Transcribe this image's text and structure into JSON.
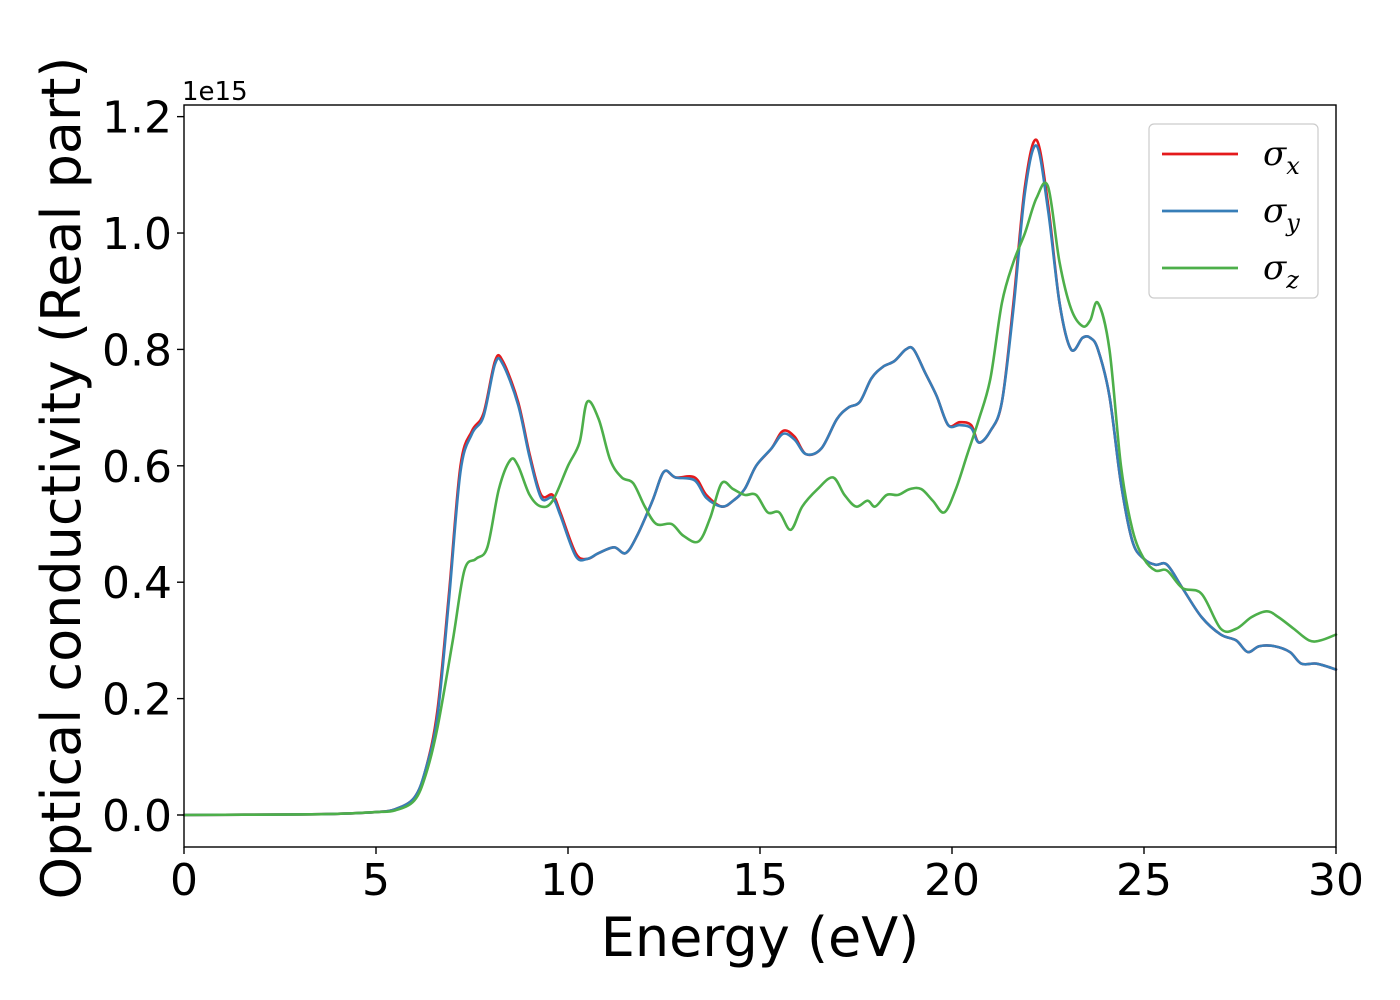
{
  "chart_data": {
    "type": "line",
    "xlabel": "Energy (eV)",
    "ylabel": "Optical conductivity (Real part)",
    "y_offset_label": "1e15",
    "xlim": [
      0,
      30
    ],
    "ylim": [
      -0.055,
      1.22
    ],
    "x_ticks": [
      0,
      5,
      10,
      15,
      20,
      25,
      30
    ],
    "x_tick_labels": [
      "0",
      "5",
      "10",
      "15",
      "20",
      "25",
      "30"
    ],
    "y_ticks": [
      0.0,
      0.2,
      0.4,
      0.6,
      0.8,
      1.0,
      1.2
    ],
    "y_tick_labels": [
      "0.0",
      "0.2",
      "0.4",
      "0.6",
      "0.8",
      "1.0",
      "1.2"
    ],
    "grid": false,
    "legend_position": "top-right",
    "series": [
      {
        "name": "σx",
        "legend_base": "σ",
        "legend_sub": "x",
        "color": "#e41a1c",
        "x": [
          0,
          3,
          4,
          5,
          5.5,
          6,
          6.3,
          6.6,
          6.9,
          7.2,
          7.5,
          7.8,
          8.1,
          8.3,
          8.7,
          9.0,
          9.3,
          9.6,
          9.8,
          10.2,
          10.5,
          10.8,
          11.2,
          11.5,
          11.8,
          12.2,
          12.5,
          12.8,
          13.3,
          13.6,
          14.0,
          14.3,
          14.6,
          14.9,
          15.3,
          15.6,
          15.9,
          16.2,
          16.6,
          17.0,
          17.3,
          17.6,
          17.9,
          18.2,
          18.5,
          18.8,
          19.0,
          19.3,
          19.6,
          19.9,
          20.2,
          20.5,
          20.7,
          21.0,
          21.3,
          21.6,
          21.9,
          22.2,
          22.5,
          22.8,
          23.1,
          23.4,
          23.6,
          23.8,
          24.1,
          24.4,
          24.7,
          25.0,
          25.3,
          25.6,
          26.0,
          26.5,
          27.0,
          27.4,
          27.7,
          28.0,
          28.4,
          28.8,
          29.1,
          29.5,
          30.0
        ],
        "values": [
          0.0,
          0.001,
          0.002,
          0.005,
          0.01,
          0.03,
          0.08,
          0.18,
          0.38,
          0.6,
          0.66,
          0.69,
          0.78,
          0.78,
          0.71,
          0.62,
          0.55,
          0.55,
          0.52,
          0.45,
          0.44,
          0.45,
          0.46,
          0.45,
          0.48,
          0.54,
          0.59,
          0.58,
          0.58,
          0.55,
          0.53,
          0.54,
          0.56,
          0.6,
          0.63,
          0.66,
          0.65,
          0.62,
          0.63,
          0.68,
          0.7,
          0.71,
          0.75,
          0.77,
          0.78,
          0.8,
          0.8,
          0.76,
          0.72,
          0.67,
          0.675,
          0.67,
          0.64,
          0.66,
          0.71,
          0.88,
          1.08,
          1.16,
          1.05,
          0.88,
          0.8,
          0.82,
          0.82,
          0.8,
          0.72,
          0.57,
          0.47,
          0.44,
          0.43,
          0.43,
          0.39,
          0.34,
          0.31,
          0.3,
          0.28,
          0.29,
          0.29,
          0.28,
          0.26,
          0.26,
          0.25
        ]
      },
      {
        "name": "σy",
        "legend_base": "σ",
        "legend_sub": "y",
        "color": "#377eb8",
        "x": [
          0,
          3,
          4,
          5,
          5.5,
          6,
          6.3,
          6.6,
          6.9,
          7.2,
          7.5,
          7.8,
          8.1,
          8.3,
          8.7,
          9.0,
          9.3,
          9.6,
          9.8,
          10.2,
          10.5,
          10.8,
          11.2,
          11.5,
          11.8,
          12.2,
          12.5,
          12.8,
          13.3,
          13.6,
          14.0,
          14.3,
          14.6,
          14.9,
          15.3,
          15.6,
          15.9,
          16.2,
          16.6,
          17.0,
          17.3,
          17.6,
          17.9,
          18.2,
          18.5,
          18.8,
          19.0,
          19.3,
          19.6,
          19.9,
          20.2,
          20.5,
          20.7,
          21.0,
          21.3,
          21.6,
          21.9,
          22.2,
          22.5,
          22.8,
          23.1,
          23.4,
          23.6,
          23.8,
          24.1,
          24.4,
          24.7,
          25.0,
          25.3,
          25.6,
          26.0,
          26.5,
          27.0,
          27.4,
          27.7,
          28.0,
          28.4,
          28.8,
          29.1,
          29.5,
          30.0
        ],
        "values": [
          0.0,
          0.001,
          0.002,
          0.005,
          0.01,
          0.03,
          0.08,
          0.17,
          0.37,
          0.59,
          0.655,
          0.685,
          0.775,
          0.775,
          0.705,
          0.615,
          0.545,
          0.545,
          0.515,
          0.445,
          0.44,
          0.45,
          0.46,
          0.45,
          0.48,
          0.54,
          0.59,
          0.58,
          0.575,
          0.545,
          0.53,
          0.54,
          0.56,
          0.6,
          0.63,
          0.655,
          0.645,
          0.62,
          0.63,
          0.68,
          0.7,
          0.71,
          0.75,
          0.77,
          0.78,
          0.8,
          0.8,
          0.76,
          0.72,
          0.67,
          0.67,
          0.665,
          0.64,
          0.66,
          0.71,
          0.87,
          1.07,
          1.15,
          1.04,
          0.88,
          0.8,
          0.82,
          0.82,
          0.8,
          0.72,
          0.57,
          0.47,
          0.44,
          0.43,
          0.43,
          0.39,
          0.34,
          0.31,
          0.3,
          0.28,
          0.29,
          0.29,
          0.28,
          0.26,
          0.26,
          0.25
        ]
      },
      {
        "name": "σz",
        "legend_base": "σ",
        "legend_sub": "z",
        "color": "#4daf4a",
        "x": [
          0,
          3,
          4,
          5,
          5.5,
          6,
          6.3,
          6.6,
          7.0,
          7.3,
          7.6,
          7.9,
          8.2,
          8.5,
          8.7,
          9.0,
          9.3,
          9.6,
          10.0,
          10.3,
          10.5,
          10.8,
          11.1,
          11.4,
          11.7,
          12.0,
          12.3,
          12.7,
          13.0,
          13.4,
          13.7,
          14.0,
          14.3,
          14.6,
          14.9,
          15.2,
          15.5,
          15.8,
          16.1,
          16.5,
          16.9,
          17.2,
          17.5,
          17.8,
          18.0,
          18.3,
          18.6,
          18.9,
          19.2,
          19.5,
          19.8,
          20.1,
          20.4,
          20.7,
          21.0,
          21.3,
          21.6,
          21.9,
          22.2,
          22.5,
          22.8,
          23.1,
          23.4,
          23.6,
          23.8,
          24.1,
          24.4,
          24.7,
          25.0,
          25.3,
          25.6,
          26.0,
          26.5,
          27.0,
          27.4,
          27.8,
          28.2,
          28.5,
          28.9,
          29.3,
          29.6,
          30.0
        ],
        "values": [
          0.0,
          0.001,
          0.002,
          0.005,
          0.008,
          0.025,
          0.07,
          0.15,
          0.3,
          0.42,
          0.44,
          0.46,
          0.56,
          0.61,
          0.6,
          0.55,
          0.53,
          0.54,
          0.6,
          0.64,
          0.71,
          0.68,
          0.61,
          0.58,
          0.57,
          0.53,
          0.5,
          0.5,
          0.48,
          0.47,
          0.51,
          0.57,
          0.56,
          0.55,
          0.55,
          0.52,
          0.52,
          0.49,
          0.53,
          0.56,
          0.58,
          0.55,
          0.53,
          0.54,
          0.53,
          0.55,
          0.55,
          0.56,
          0.56,
          0.54,
          0.52,
          0.56,
          0.62,
          0.68,
          0.75,
          0.88,
          0.95,
          1.0,
          1.06,
          1.08,
          0.95,
          0.87,
          0.84,
          0.85,
          0.88,
          0.8,
          0.6,
          0.49,
          0.44,
          0.42,
          0.42,
          0.39,
          0.38,
          0.32,
          0.32,
          0.34,
          0.35,
          0.34,
          0.32,
          0.3,
          0.3,
          0.31
        ]
      }
    ]
  }
}
